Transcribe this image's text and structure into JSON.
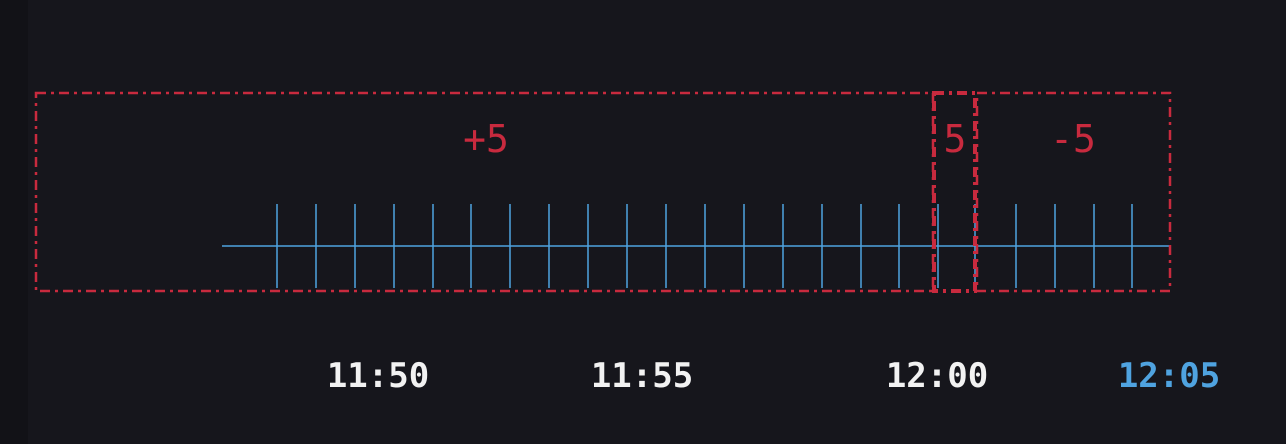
{
  "colors": {
    "background": "#16161c",
    "region": "#c82a3e",
    "timeline": "#4fa3e0",
    "label": "#f2f2f2",
    "current": "#4fa3e0"
  },
  "regions": [
    {
      "label": "+5"
    },
    {
      "label": "5"
    },
    {
      "label": "-5"
    }
  ],
  "time_labels": [
    {
      "text": "11:50",
      "current": false
    },
    {
      "text": "11:55",
      "current": false
    },
    {
      "text": "12:00",
      "current": false
    },
    {
      "text": "12:05",
      "current": true
    }
  ]
}
